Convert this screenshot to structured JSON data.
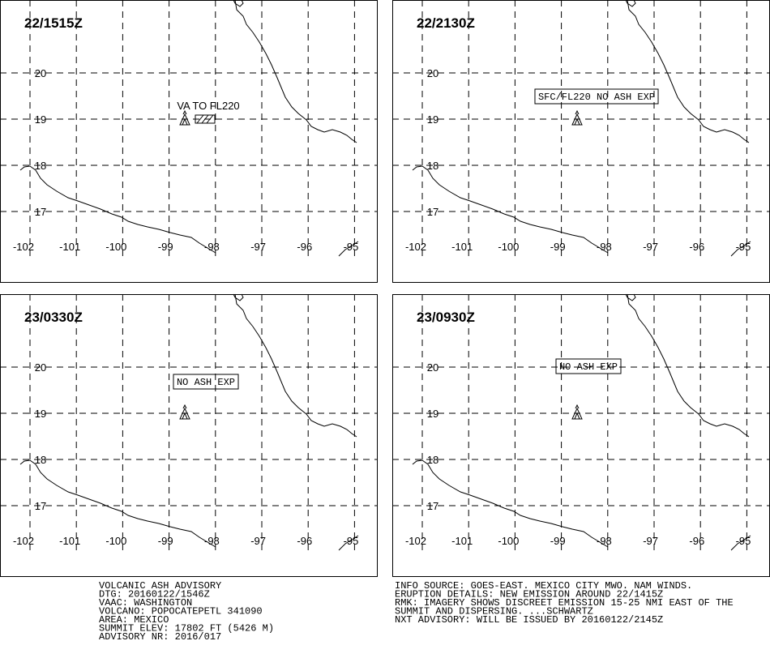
{
  "panels": [
    {
      "time": "22/1515Z",
      "annotation": "VA TO FL220"
    },
    {
      "time": "22/2130Z",
      "annotation": "SFC/FL220 NO ASH EXP"
    },
    {
      "time": "23/0330Z",
      "annotation": "NO ASH EXP"
    },
    {
      "time": "23/0930Z",
      "annotation": "NO ASH EXP"
    }
  ],
  "lon_ticks": [
    -102,
    -101,
    -100,
    -99,
    -98,
    -97,
    -96,
    -95
  ],
  "lat_ticks": [
    17,
    18,
    19,
    20
  ],
  "footer_left": [
    "VOLCANIC ASH ADVISORY",
    "DTG: 20160122/1546Z",
    "VAAC: WASHINGTON",
    "VOLCANO: POPOCATEPETL 341090",
    "AREA: MEXICO",
    "SUMMIT ELEV: 17802 FT (5426 M)",
    "ADVISORY NR: 2016/017"
  ],
  "footer_right": [
    "INFO SOURCE: GOES-EAST. MEXICO CITY MWO. NAM WINDS.",
    "ERUPTION DETAILS: NEW EMISSION AROUND 22/1415Z",
    "RMK: IMAGERY SHOWS DISCREET EMISSION 15-25 NMI EAST OF THE",
    "SUMMIT AND DISPERSING. ...SCHWARTZ",
    "NXT ADVISORY: WILL BE ISSUED BY 20160122/2145Z"
  ]
}
